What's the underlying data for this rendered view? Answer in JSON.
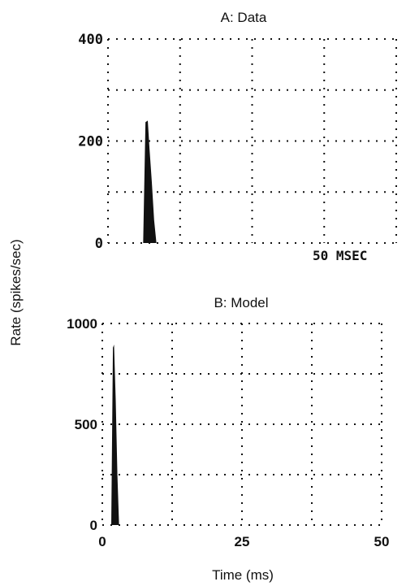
{
  "ylabel": "Rate (spikes/sec)",
  "xlabel": "Time (ms)",
  "chart_data": [
    {
      "type": "area",
      "title": "A: Data",
      "annotation": "50 MSEC",
      "ylim": [
        0,
        400
      ],
      "xlim": [
        0,
        50
      ],
      "y_ticks": [
        "400",
        "200",
        "0"
      ],
      "x_ticks": [],
      "grid": true,
      "x": [
        6.1,
        6.5,
        6.9,
        7.2,
        7.6,
        8.0,
        8.4
      ],
      "y": [
        0,
        237,
        240,
        185,
        120,
        45,
        0
      ]
    },
    {
      "type": "area",
      "title": "B: Model",
      "ylim": [
        0,
        1000
      ],
      "xlim": [
        0,
        50
      ],
      "y_ticks": [
        "1000",
        "500",
        "0"
      ],
      "x_ticks": [
        "0",
        "25",
        "50"
      ],
      "grid": true,
      "x": [
        1.6,
        1.9,
        2.1,
        2.4,
        2.7,
        3.0
      ],
      "y": [
        0,
        880,
        895,
        620,
        250,
        0
      ]
    }
  ]
}
